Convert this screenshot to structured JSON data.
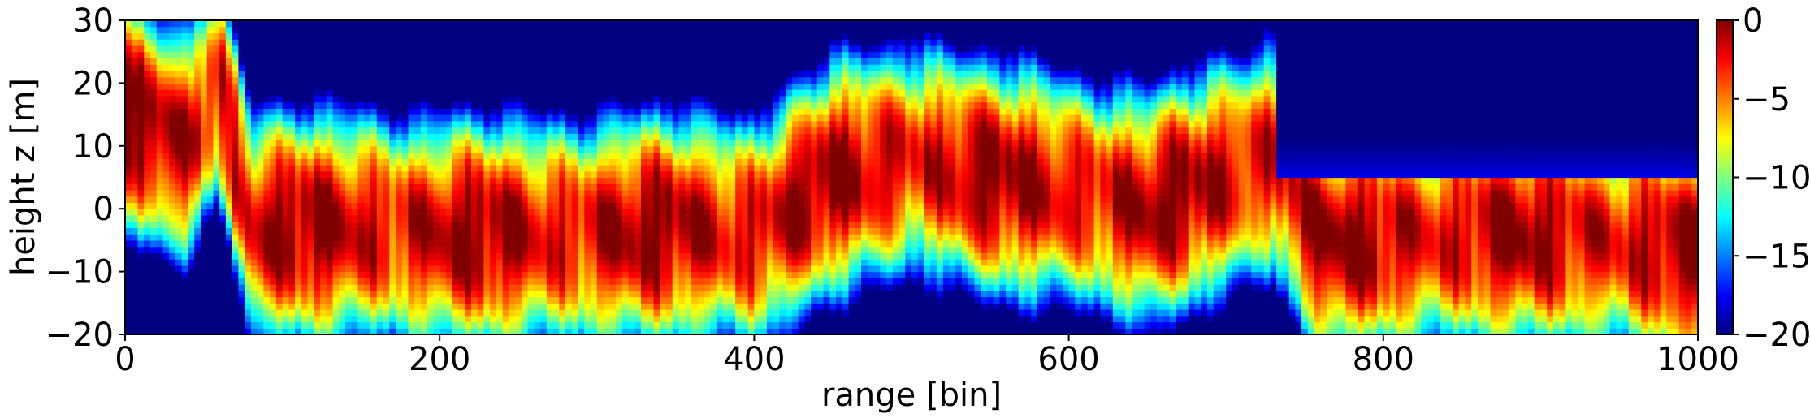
{
  "chart_data": {
    "type": "heatmap",
    "title": "",
    "xlabel": "range [bin]",
    "ylabel": "height z [m]",
    "xlim": [
      0,
      1000
    ],
    "ylim": [
      -20,
      30
    ],
    "x_ticks": [
      0,
      200,
      400,
      600,
      800,
      1000
    ],
    "x_tick_labels": [
      "0",
      "200",
      "400",
      "600",
      "800",
      "1000"
    ],
    "y_ticks": [
      -20,
      -10,
      0,
      10,
      20,
      30
    ],
    "y_tick_labels": [
      "−20",
      "−10",
      "0",
      "10",
      "20",
      "30"
    ],
    "colormap": "jet",
    "colorbar": {
      "vmin": -20,
      "vmax": 0,
      "ticks": [
        -20,
        -15,
        -10,
        -5,
        0
      ],
      "tick_labels": [
        "−20",
        "−15",
        "−10",
        "−5",
        "0"
      ],
      "placement": "right"
    },
    "grid": false,
    "ridge": {
      "description_values_z_m": "approximate height of the strongest return (dB near 0) along range",
      "x": [
        0,
        40,
        60,
        80,
        100,
        150,
        200,
        250,
        300,
        350,
        400,
        450,
        500,
        550,
        600,
        650,
        700,
        730,
        760,
        800,
        850,
        900,
        950,
        1000
      ],
      "z": [
        15,
        10,
        20,
        -3,
        -3,
        -3,
        -4,
        -4,
        -4,
        -3,
        -4,
        5,
        8,
        5,
        3,
        0,
        5,
        8,
        -5,
        -5,
        -4,
        -4,
        -5,
        -7
      ]
    },
    "low_region": {
      "x_start": 730,
      "x_end": 1000,
      "z_above": 5,
      "level_db": -20
    }
  }
}
